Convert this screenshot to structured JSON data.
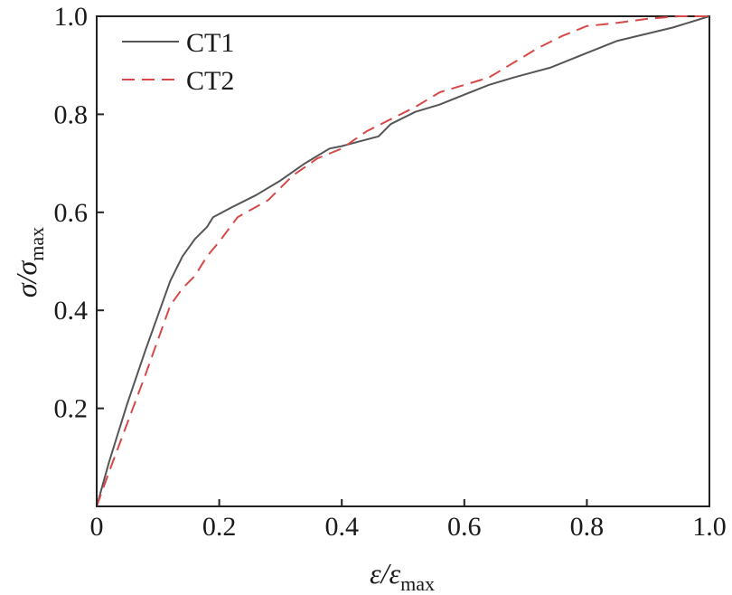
{
  "chart_data": {
    "type": "line",
    "title": "",
    "xlabel": {
      "base": "ε/ε",
      "sub": "max"
    },
    "ylabel": {
      "base": "σ/σ",
      "sub": "max"
    },
    "xlim": [
      0,
      1.0
    ],
    "ylim": [
      0,
      1.0
    ],
    "x_ticks": [
      0,
      0.2,
      0.4,
      0.6,
      0.8,
      1.0
    ],
    "x_tick_labels": [
      "0",
      "0.2",
      "0.4",
      "0.6",
      "0.8",
      "1.0"
    ],
    "y_ticks": [
      0.2,
      0.4,
      0.6,
      0.8,
      1.0
    ],
    "y_tick_labels": [
      "0.2",
      "0.4",
      "0.6",
      "0.8",
      "1.0"
    ],
    "grid": false,
    "legend_position": "top-left",
    "series": [
      {
        "name": "CT1",
        "color": "#555555",
        "style": "solid",
        "x": [
          0,
          0.02,
          0.05,
          0.08,
          0.1,
          0.12,
          0.14,
          0.16,
          0.18,
          0.19,
          0.22,
          0.26,
          0.3,
          0.34,
          0.38,
          0.4,
          0.43,
          0.46,
          0.48,
          0.52,
          0.56,
          0.6,
          0.64,
          0.68,
          0.71,
          0.74,
          0.8,
          0.85,
          0.9,
          0.94,
          1.0
        ],
        "y": [
          0,
          0.09,
          0.21,
          0.32,
          0.39,
          0.46,
          0.51,
          0.545,
          0.57,
          0.59,
          0.61,
          0.635,
          0.665,
          0.7,
          0.73,
          0.735,
          0.745,
          0.755,
          0.78,
          0.805,
          0.82,
          0.84,
          0.86,
          0.875,
          0.885,
          0.895,
          0.925,
          0.95,
          0.965,
          0.977,
          1.0
        ]
      },
      {
        "name": "CT2",
        "color": "#d94848",
        "style": "dashed",
        "x": [
          0,
          0.02,
          0.05,
          0.08,
          0.1,
          0.12,
          0.14,
          0.16,
          0.18,
          0.2,
          0.23,
          0.28,
          0.32,
          0.36,
          0.4,
          0.44,
          0.48,
          0.52,
          0.56,
          0.6,
          0.64,
          0.68,
          0.72,
          0.76,
          0.8,
          0.84,
          0.9,
          0.95,
          1.0
        ],
        "y": [
          0,
          0.07,
          0.17,
          0.27,
          0.34,
          0.41,
          0.445,
          0.47,
          0.51,
          0.54,
          0.59,
          0.625,
          0.675,
          0.71,
          0.73,
          0.765,
          0.79,
          0.815,
          0.845,
          0.86,
          0.875,
          0.905,
          0.935,
          0.96,
          0.98,
          0.985,
          0.995,
          1.0,
          1.0
        ]
      }
    ]
  }
}
